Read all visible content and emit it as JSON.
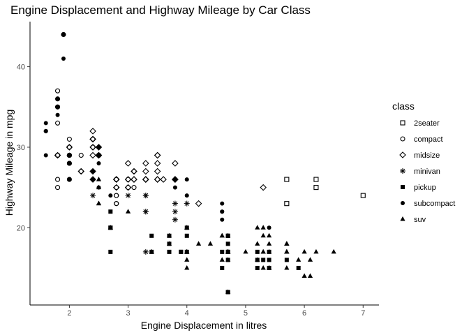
{
  "chart_data": {
    "type": "scatter",
    "title": "Engine Displacement and Highway Mileage by Car Class",
    "xlabel": "Engine Displacement in litres",
    "ylabel": "Highway Mileage in mpg",
    "xlim": [
      1.33,
      7.27
    ],
    "ylim": [
      10.4,
      45.6
    ],
    "xticks": [
      2,
      3,
      4,
      5,
      6,
      7
    ],
    "yticks": [
      20,
      30,
      40
    ],
    "grid": false,
    "legend": {
      "title": "class",
      "placement": "right"
    },
    "series": [
      {
        "name": "2seater",
        "shape": "open-square",
        "points": [
          [
            5.7,
            26
          ],
          [
            5.7,
            23
          ],
          [
            6.2,
            26
          ],
          [
            6.2,
            25
          ],
          [
            7.0,
            24
          ]
        ]
      },
      {
        "name": "compact",
        "shape": "open-circle",
        "points": [
          [
            1.8,
            29
          ],
          [
            1.8,
            29
          ],
          [
            2.0,
            31
          ],
          [
            2.0,
            30
          ],
          [
            2.8,
            26
          ],
          [
            2.8,
            26
          ],
          [
            3.1,
            27
          ],
          [
            1.8,
            26
          ],
          [
            2.0,
            28
          ],
          [
            2.0,
            30
          ],
          [
            2.0,
            29
          ],
          [
            2.8,
            25
          ],
          [
            3.1,
            25
          ],
          [
            2.2,
            27
          ],
          [
            2.2,
            29
          ],
          [
            2.4,
            31
          ],
          [
            2.4,
            31
          ],
          [
            3.0,
            26
          ],
          [
            3.0,
            25
          ],
          [
            1.8,
            29
          ],
          [
            1.8,
            29
          ],
          [
            1.8,
            35
          ],
          [
            1.8,
            37
          ],
          [
            1.8,
            35
          ],
          [
            1.8,
            25
          ],
          [
            1.8,
            33
          ],
          [
            2.0,
            29
          ],
          [
            2.0,
            28
          ],
          [
            2.5,
            29
          ],
          [
            2.5,
            29
          ],
          [
            2.8,
            23
          ],
          [
            2.8,
            24
          ],
          [
            1.9,
            44
          ],
          [
            2.0,
            29
          ],
          [
            2.0,
            26
          ],
          [
            2.0,
            29
          ],
          [
            2.0,
            29
          ],
          [
            2.5,
            29
          ],
          [
            2.5,
            29
          ],
          [
            2.8,
            23
          ],
          [
            2.8,
            24
          ],
          [
            1.8,
            36
          ],
          [
            2.4,
            30
          ]
        ]
      },
      {
        "name": "midsize",
        "shape": "open-diamond",
        "points": [
          [
            2.8,
            26
          ],
          [
            3.1,
            26
          ],
          [
            4.2,
            23
          ],
          [
            2.4,
            27
          ],
          [
            2.4,
            30
          ],
          [
            3.1,
            26
          ],
          [
            3.5,
            29
          ],
          [
            3.6,
            26
          ],
          [
            2.4,
            32
          ],
          [
            3.0,
            26
          ],
          [
            3.3,
            26
          ],
          [
            3.3,
            26
          ],
          [
            3.3,
            28
          ],
          [
            3.8,
            26
          ],
          [
            3.8,
            28
          ],
          [
            3.8,
            26
          ],
          [
            2.4,
            31
          ],
          [
            2.4,
            31
          ],
          [
            3.5,
            26
          ],
          [
            3.5,
            27
          ],
          [
            3.0,
            28
          ],
          [
            2.4,
            29
          ],
          [
            2.5,
            30
          ],
          [
            2.5,
            29
          ],
          [
            3.5,
            29
          ],
          [
            5.3,
            25
          ],
          [
            2.8,
            26
          ],
          [
            2.2,
            27
          ],
          [
            3.0,
            25
          ],
          [
            3.3,
            26
          ],
          [
            3.3,
            27
          ],
          [
            3.5,
            26
          ],
          [
            2.5,
            29
          ],
          [
            2.0,
            30
          ],
          [
            1.8,
            29
          ],
          [
            2.8,
            25
          ],
          [
            2.4,
            26
          ],
          [
            3.1,
            27
          ],
          [
            3.8,
            26
          ],
          [
            3.5,
            28
          ],
          [
            3.3,
            26
          ]
        ]
      },
      {
        "name": "minivan",
        "shape": "asterisk",
        "points": [
          [
            2.4,
            24
          ],
          [
            3.0,
            24
          ],
          [
            3.3,
            22
          ],
          [
            3.3,
            22
          ],
          [
            3.3,
            24
          ],
          [
            3.3,
            24
          ],
          [
            3.3,
            17
          ],
          [
            3.8,
            22
          ],
          [
            3.8,
            21
          ],
          [
            3.8,
            23
          ],
          [
            4.0,
            23
          ]
        ]
      },
      {
        "name": "pickup",
        "shape": "filled-square",
        "points": [
          [
            2.7,
            20
          ],
          [
            2.7,
            20
          ],
          [
            3.9,
            17
          ],
          [
            3.9,
            17
          ],
          [
            4.7,
            12
          ],
          [
            4.7,
            19
          ],
          [
            4.7,
            19
          ],
          [
            5.2,
            17
          ],
          [
            5.2,
            15
          ],
          [
            3.7,
            19
          ],
          [
            3.7,
            17
          ],
          [
            4.7,
            17
          ],
          [
            4.7,
            17
          ],
          [
            4.7,
            16
          ],
          [
            4.7,
            12
          ],
          [
            5.2,
            16
          ],
          [
            5.7,
            16
          ],
          [
            5.9,
            15
          ],
          [
            2.7,
            22
          ],
          [
            2.7,
            17
          ],
          [
            3.4,
            19
          ],
          [
            3.4,
            17
          ],
          [
            4.0,
            20
          ],
          [
            4.0,
            17
          ],
          [
            4.6,
            17
          ],
          [
            5.4,
            17
          ],
          [
            5.4,
            15
          ],
          [
            5.4,
            16
          ],
          [
            3.7,
            18
          ],
          [
            4.0,
            19
          ],
          [
            4.7,
            18
          ],
          [
            5.3,
            16
          ],
          [
            4.6,
            15
          ]
        ]
      },
      {
        "name": "subcompact",
        "shape": "filled-circle",
        "points": [
          [
            3.8,
            26
          ],
          [
            3.8,
            25
          ],
          [
            4.0,
            26
          ],
          [
            4.0,
            24
          ],
          [
            4.6,
            21
          ],
          [
            4.6,
            22
          ],
          [
            4.6,
            23
          ],
          [
            4.6,
            22
          ],
          [
            5.4,
            20
          ],
          [
            1.6,
            33
          ],
          [
            1.6,
            32
          ],
          [
            1.6,
            32
          ],
          [
            1.6,
            29
          ],
          [
            1.6,
            32
          ],
          [
            1.8,
            34
          ],
          [
            1.8,
            36
          ],
          [
            1.8,
            36
          ],
          [
            2.0,
            29
          ],
          [
            2.4,
            26
          ],
          [
            2.4,
            27
          ],
          [
            2.5,
            30
          ],
          [
            2.5,
            30
          ],
          [
            2.0,
            28
          ],
          [
            2.0,
            26
          ],
          [
            2.0,
            29
          ],
          [
            2.0,
            26
          ],
          [
            2.7,
            24
          ],
          [
            1.9,
            44
          ],
          [
            1.9,
            41
          ],
          [
            2.0,
            29
          ],
          [
            2.0,
            26
          ],
          [
            2.5,
            28
          ],
          [
            2.5,
            29
          ],
          [
            1.8,
            35
          ],
          [
            2.0,
            29
          ],
          [
            2.0,
            28
          ],
          [
            2.5,
            25
          ]
        ]
      },
      {
        "name": "suv",
        "shape": "filled-triangle",
        "points": [
          [
            5.7,
            17
          ],
          [
            5.7,
            17
          ],
          [
            6.2,
            17
          ],
          [
            6.5,
            17
          ],
          [
            4.0,
            17
          ],
          [
            4.0,
            17
          ],
          [
            4.0,
            15
          ],
          [
            4.0,
            16
          ],
          [
            4.7,
            17
          ],
          [
            4.7,
            17
          ],
          [
            5.2,
            16
          ],
          [
            5.9,
            16
          ],
          [
            3.0,
            22
          ],
          [
            3.7,
            19
          ],
          [
            3.7,
            18
          ],
          [
            4.0,
            20
          ],
          [
            4.6,
            19
          ],
          [
            5.0,
            17
          ],
          [
            4.2,
            18
          ],
          [
            4.4,
            18
          ],
          [
            4.6,
            16
          ],
          [
            5.4,
            17
          ],
          [
            5.4,
            15
          ],
          [
            5.4,
            15
          ],
          [
            5.3,
            20
          ],
          [
            5.3,
            15
          ],
          [
            5.3,
            17
          ],
          [
            5.7,
            18
          ],
          [
            6.0,
            14
          ],
          [
            6.1,
            14
          ],
          [
            5.4,
            18
          ],
          [
            4.6,
            19
          ],
          [
            4.7,
            17
          ],
          [
            5.7,
            17
          ],
          [
            2.5,
            25
          ],
          [
            2.5,
            23
          ],
          [
            4.0,
            20
          ],
          [
            4.0,
            17
          ],
          [
            4.7,
            17
          ],
          [
            4.7,
            17
          ],
          [
            5.7,
            15
          ],
          [
            2.7,
            20
          ],
          [
            2.7,
            20
          ],
          [
            3.4,
            17
          ],
          [
            3.4,
            17
          ],
          [
            4.7,
            19
          ],
          [
            5.7,
            18
          ],
          [
            5.7,
            18
          ],
          [
            5.3,
            19
          ],
          [
            5.3,
            17
          ],
          [
            5.4,
            19
          ],
          [
            5.7,
            17
          ],
          [
            6.0,
            17
          ],
          [
            6.1,
            16
          ],
          [
            5.2,
            18
          ],
          [
            5.2,
            20
          ],
          [
            4.7,
            16
          ],
          [
            4.7,
            12
          ],
          [
            2.5,
            26
          ],
          [
            2.5,
            23
          ]
        ]
      }
    ]
  }
}
